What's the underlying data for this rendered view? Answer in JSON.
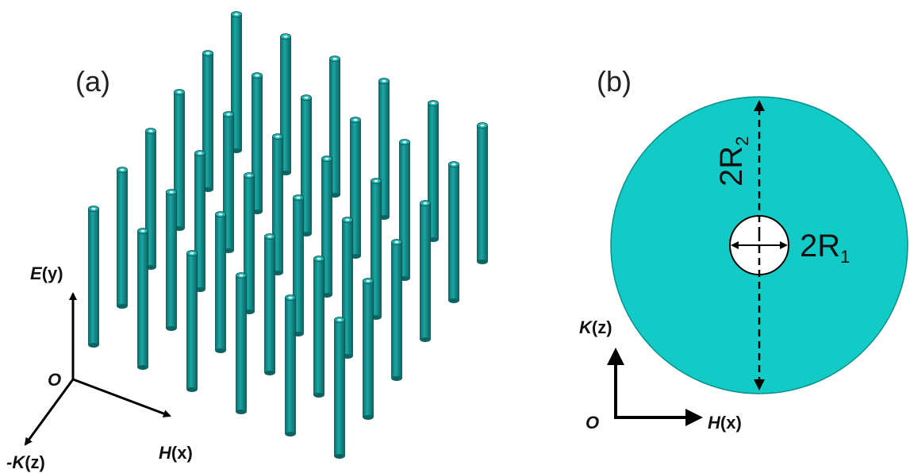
{
  "panel_a": {
    "label": "(a)",
    "axes": {
      "origin": "O",
      "vertical": {
        "symbol": "E",
        "coord": "(y)"
      },
      "horizontal": {
        "symbol": "H",
        "coord": "(x)"
      },
      "depth": {
        "symbol": "-K",
        "coord": "(z)"
      }
    }
  },
  "panel_b": {
    "label": "(b)",
    "outer_diameter": {
      "base": "2R",
      "sub": "2"
    },
    "inner_diameter": {
      "base": "2R",
      "sub": "1"
    },
    "axes": {
      "origin": "O",
      "vertical": {
        "symbol": "K",
        "coord": "(z)"
      },
      "horizontal": {
        "symbol": "H",
        "coord": "(x)"
      }
    }
  }
}
